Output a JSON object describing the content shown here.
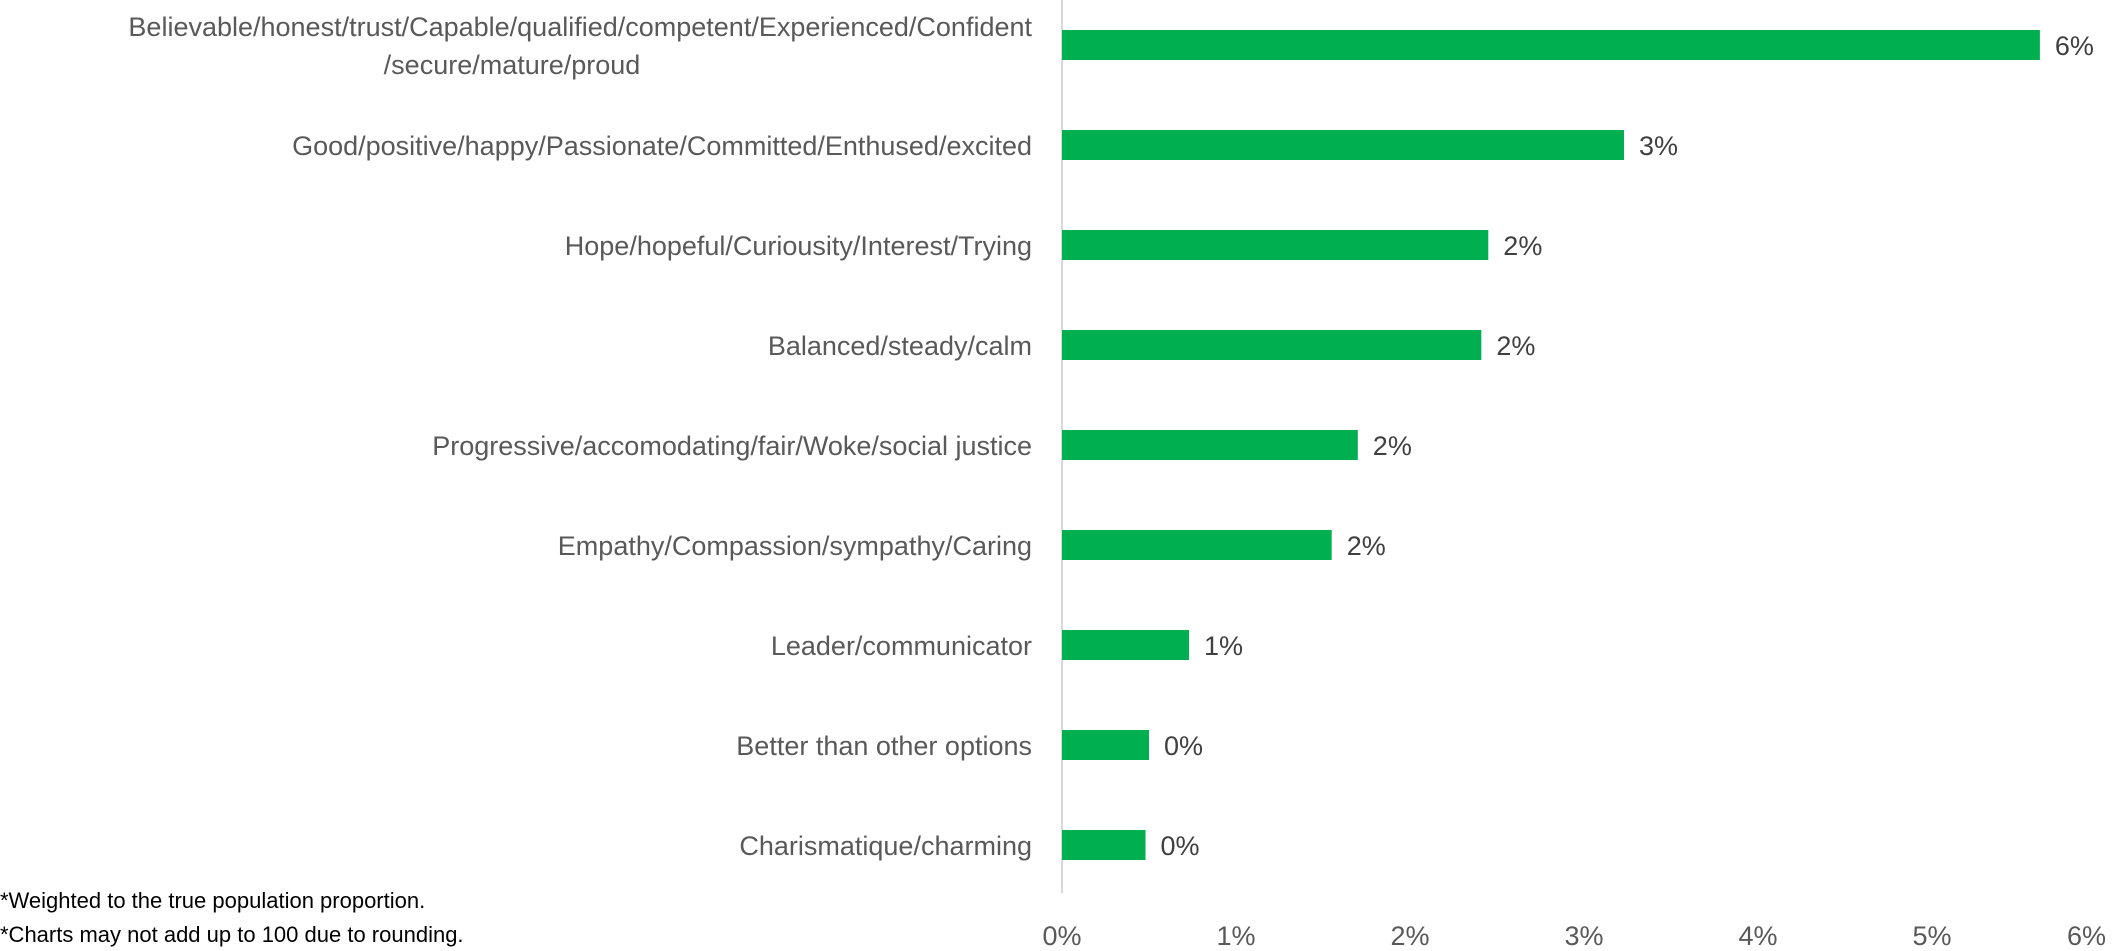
{
  "chart_data": {
    "type": "bar",
    "orientation": "horizontal",
    "categories": [
      [
        "Believable/honest/trust/Capable/qualified/competent/Experienced/Confident",
        "/secure/mature/proud"
      ],
      [
        "Good/positive/happy/Passionate/Committed/Enthused/excited"
      ],
      [
        "Hope/hopeful/Curiousity/Interest/Trying"
      ],
      [
        "Balanced/steady/calm"
      ],
      [
        "Progressive/accomodating/fair/Woke/social justice"
      ],
      [
        "Empathy/Compassion/sympathy/Caring"
      ],
      [
        "Leader/communicator"
      ],
      [
        "Better than other options"
      ],
      [
        "Charismatique/charming"
      ]
    ],
    "values": [
      5.62,
      3.23,
      2.45,
      2.41,
      1.7,
      1.55,
      0.73,
      0.5,
      0.48
    ],
    "data_labels": [
      "6%",
      "3%",
      "2%",
      "2%",
      "2%",
      "2%",
      "1%",
      "0%",
      "0%"
    ],
    "x_ticks": [
      0,
      1,
      2,
      3,
      4,
      5,
      6
    ],
    "x_tick_labels": [
      "0%",
      "1%",
      "2%",
      "3%",
      "4%",
      "5%",
      "6%"
    ],
    "xlim": [
      0,
      6
    ],
    "bar_color": "#00B050",
    "grid": false,
    "legend": "none",
    "title": "",
    "xlabel": "",
    "ylabel": ""
  },
  "footnotes": [
    "*Weighted to the true population proportion.",
    "*Charts may not add up to 100 due to rounding."
  ]
}
